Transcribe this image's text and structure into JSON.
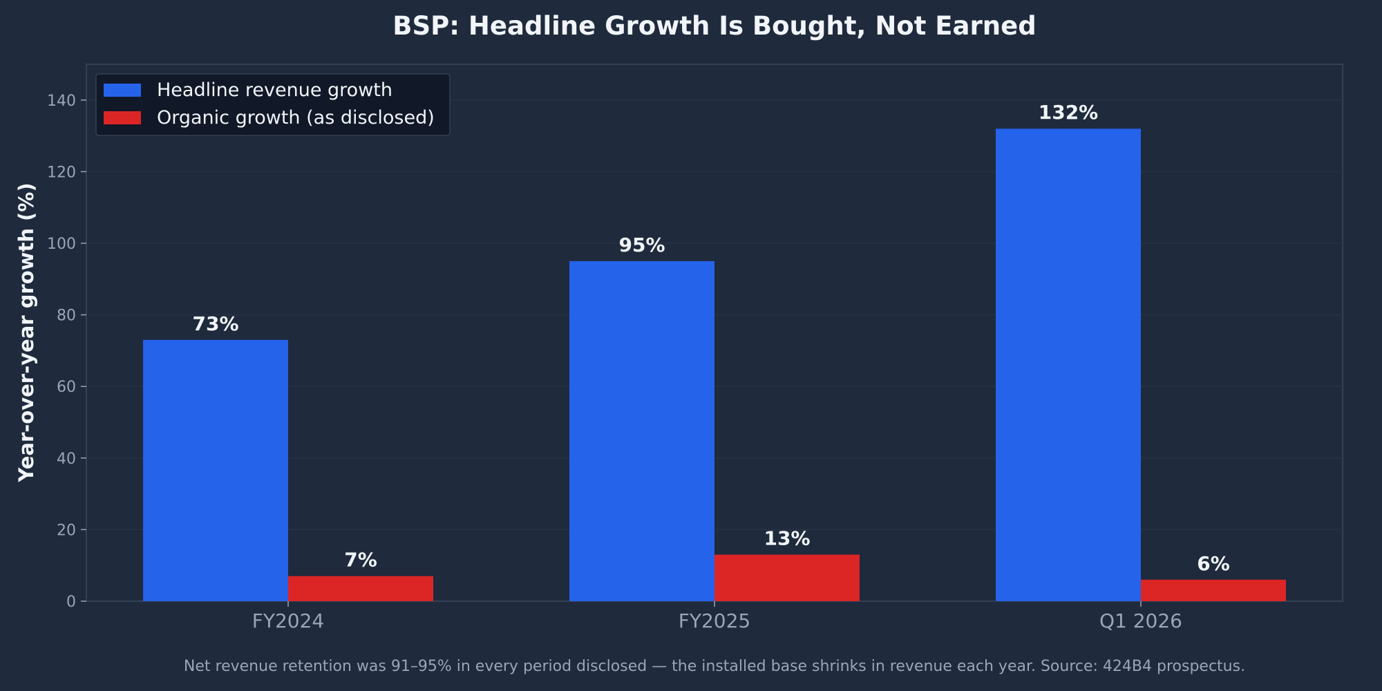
{
  "chart_data": {
    "type": "bar",
    "title": "BSP: Headline Growth Is Bought, Not Earned",
    "xlabel": "",
    "ylabel": "Year-over-year growth (%)",
    "ylim": [
      0,
      150
    ],
    "yticks": [
      0,
      20,
      40,
      60,
      80,
      100,
      120,
      140
    ],
    "grid": true,
    "legend_position": "top-left",
    "categories": [
      "FY2024",
      "FY2025",
      "Q1 2026"
    ],
    "series": [
      {
        "name": "Headline revenue growth",
        "values": [
          73,
          95,
          132
        ],
        "labels": [
          "73%",
          "95%",
          "132%"
        ],
        "color": "#2563eb"
      },
      {
        "name": "Organic growth (as disclosed)",
        "values": [
          7,
          13,
          6
        ],
        "labels": [
          "7%",
          "13%",
          "6%"
        ],
        "color": "#dc2626"
      }
    ],
    "footnote": "Net revenue retention was 91–95% in every period disclosed — the installed base shrinks in revenue each year. Source: 424B4 prospectus."
  },
  "colors": {
    "background": "#1f2a3c",
    "plot_border": "#334155",
    "grid": "#273244",
    "legend_bg": "#111827"
  }
}
